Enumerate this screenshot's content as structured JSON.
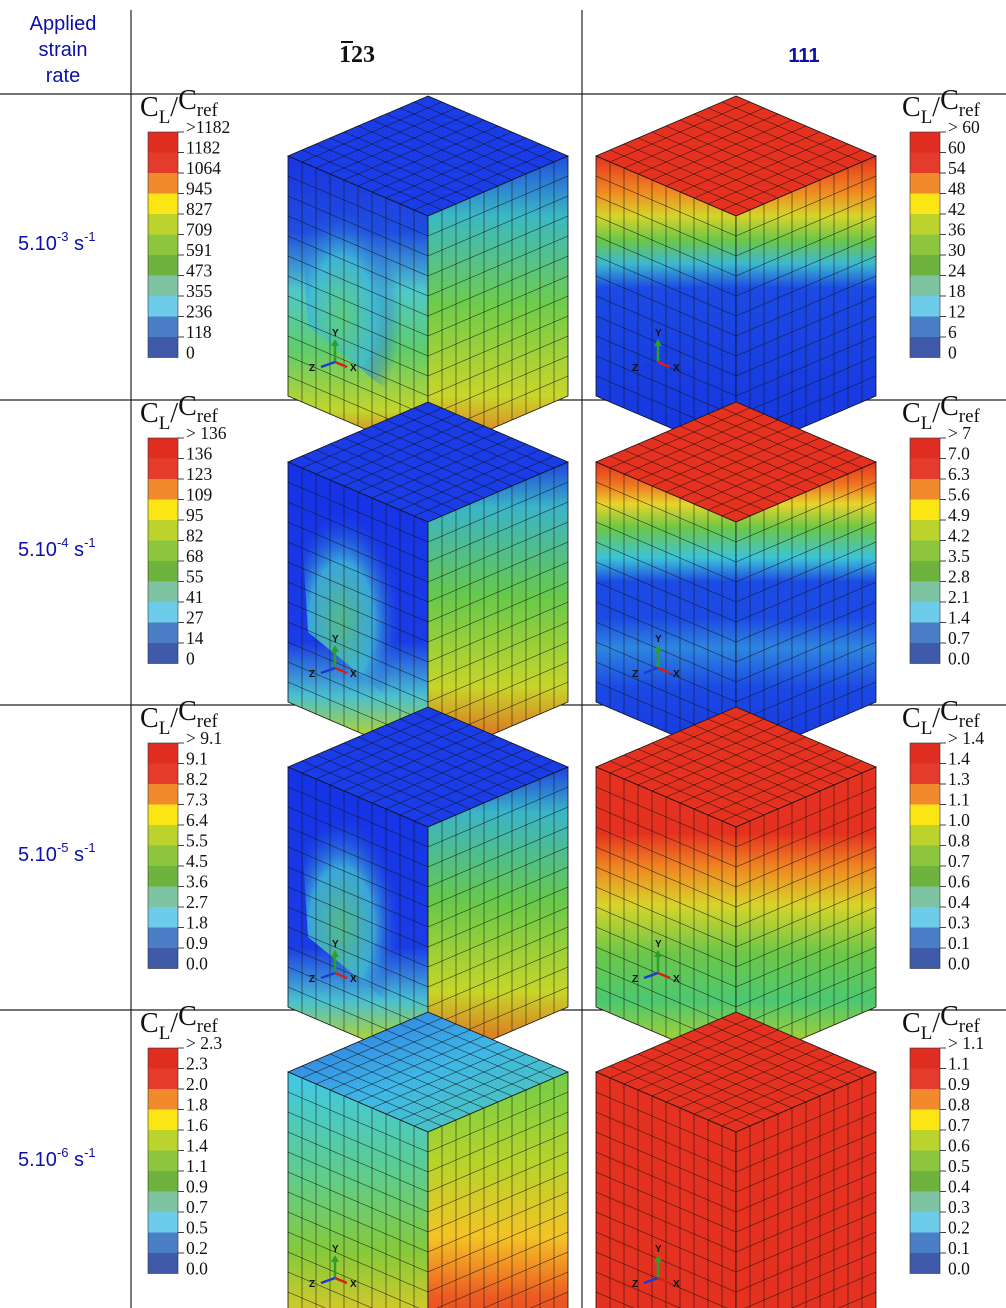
{
  "header": {
    "col1_lines": [
      "Applied",
      "strain",
      "rate"
    ],
    "col2_bar": "1",
    "col2_rest": "23",
    "col3": "111"
  },
  "legend_title": {
    "main": "C",
    "sub1": "L",
    "slash": "/",
    "sub2": "ref"
  },
  "axis_triad": {
    "y": "Y",
    "z": "Z",
    "x": "X"
  },
  "colors": {
    "bands": [
      "#3e5aa8",
      "#4a7fc8",
      "#6cccea",
      "#7fc4a2",
      "#6eb33e",
      "#8cc63f",
      "#bcd32e",
      "#fbe514",
      "#f08a2c",
      "#e33b2c",
      "#e02d22"
    ],
    "header_blue": "#0b10a8"
  },
  "rows": [
    {
      "rate_base": "5.10",
      "rate_exp": "-3",
      "rate_unit": " s",
      "rate_unit_exp": "-1",
      "left_legend": [
        ">1182",
        "1182",
        "1064",
        "945",
        "827",
        "709",
        "591",
        "473",
        "355",
        "236",
        "118",
        "0"
      ],
      "right_legend": [
        "> 60",
        "60",
        "54",
        "48",
        "42",
        "36",
        "30",
        "24",
        "18",
        "12",
        "6",
        "0"
      ]
    },
    {
      "rate_base": "5.10",
      "rate_exp": "-4",
      "rate_unit": " s",
      "rate_unit_exp": "-1",
      "left_legend": [
        "> 136",
        "136",
        "123",
        "109",
        "95",
        "82",
        "68",
        "55",
        "41",
        "27",
        "14",
        "0"
      ],
      "right_legend": [
        "> 7",
        "7.0",
        "6.3",
        "5.6",
        "4.9",
        "4.2",
        "3.5",
        "2.8",
        "2.1",
        "1.4",
        "0.7",
        "0.0"
      ]
    },
    {
      "rate_base": "5.10",
      "rate_exp": "-5",
      "rate_unit": " s",
      "rate_unit_exp": "-1",
      "left_legend": [
        "> 9.1",
        "9.1",
        "8.2",
        "7.3",
        "6.4",
        "5.5",
        "4.5",
        "3.6",
        "2.7",
        "1.8",
        "0.9",
        "0.0"
      ],
      "right_legend": [
        "> 1.4",
        "1.4",
        "1.3",
        "1.1",
        "1.0",
        "0.8",
        "0.7",
        "0.6",
        "0.4",
        "0.3",
        "0.1",
        "0.0"
      ]
    },
    {
      "rate_base": "5.10",
      "rate_exp": "-6",
      "rate_unit": " s",
      "rate_unit_exp": "-1",
      "left_legend": [
        "> 2.3",
        "2.3",
        "2.0",
        "1.8",
        "1.6",
        "1.4",
        "1.1",
        "0.9",
        "0.7",
        "0.5",
        "0.2",
        "0.0"
      ],
      "right_legend": [
        "> 1.1",
        "1.1",
        "0.9",
        "0.8",
        "0.7",
        "0.6",
        "0.5",
        "0.4",
        "0.3",
        "0.2",
        "0.1",
        "0.0"
      ]
    }
  ]
}
